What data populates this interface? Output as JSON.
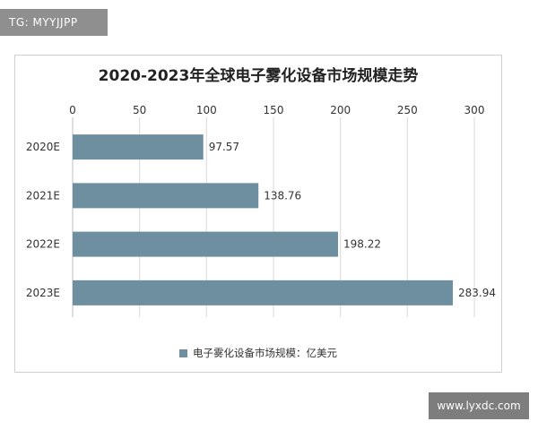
{
  "badges": {
    "top_left": "TG: MYYJJPP",
    "bottom_right": "www.lyxdc.com"
  },
  "colors": {
    "bar": "#6d8fa0",
    "grid": "#d9d9d9",
    "badge_top": "#8f8f8f",
    "badge_bottom": "#7d7d7d"
  },
  "chart_data": {
    "type": "bar",
    "orientation": "horizontal",
    "title": "2020-2023年全球电子雾化设备市场规模走势",
    "categories": [
      "2020E",
      "2021E",
      "2022E",
      "2023E"
    ],
    "series": [
      {
        "name": "电子雾化设备市场规模：亿美元",
        "values": [
          97.57,
          138.76,
          198.22,
          283.94
        ]
      }
    ],
    "data_labels": [
      "97.57",
      "138.76",
      "198.22",
      "283.94"
    ],
    "xlim": [
      0,
      300
    ],
    "xticks": [
      "0",
      "50",
      "100",
      "150",
      "200",
      "250",
      "300"
    ],
    "x_axis_position": "top",
    "grid": true,
    "legend_placement": "bottom"
  }
}
